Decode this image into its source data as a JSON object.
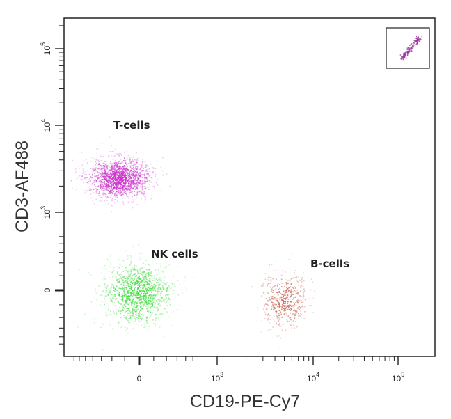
{
  "chart_data": {
    "type": "scatter",
    "xlabel": "CD19-PE-Cy7",
    "ylabel": "CD3-AF488",
    "x_ticks": [
      {
        "base": "0",
        "exp": ""
      },
      {
        "base": "10",
        "exp": "3"
      },
      {
        "base": "10",
        "exp": "4"
      },
      {
        "base": "10",
        "exp": "5"
      }
    ],
    "y_ticks": [
      {
        "base": "0",
        "exp": ""
      },
      {
        "base": "10",
        "exp": "3"
      },
      {
        "base": "10",
        "exp": "4"
      },
      {
        "base": "10",
        "exp": "5"
      }
    ],
    "x_scale": "logicle",
    "y_scale": "logicle",
    "series": [
      {
        "name": "T-cells",
        "color": "#cc33cc",
        "n_points": 1400,
        "center": {
          "x": -150,
          "y": 2500
        },
        "x_range": [
          -600,
          150
        ],
        "y_range": [
          1300,
          5000
        ]
      },
      {
        "name": "NK cells",
        "color": "#44dd44",
        "n_points": 1100,
        "center": {
          "x": -20,
          "y": -20
        },
        "x_range": [
          -500,
          250
        ],
        "y_range": [
          -400,
          250
        ]
      },
      {
        "name": "B-cells",
        "color": "#cc6655",
        "n_points": 450,
        "center": {
          "x": 5000,
          "y": -60
        },
        "x_range": [
          2500,
          10000
        ],
        "y_range": [
          -400,
          200
        ]
      }
    ],
    "legend": "labels placed next to each population",
    "grid": false,
    "inset": {
      "icon": "diagonal-scatter-thumbnail-icon",
      "color": "#993399"
    }
  }
}
